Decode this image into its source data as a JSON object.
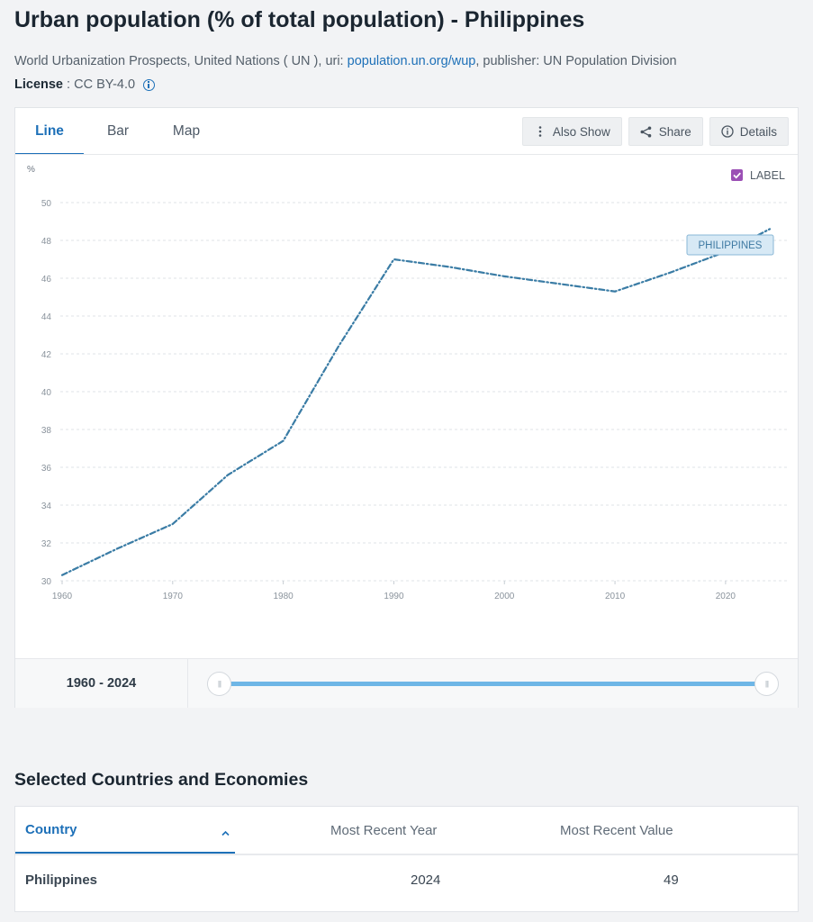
{
  "page": {
    "title": "Urban population (% of total population) - Philippines",
    "source_prefix": "World Urbanization Prospects, United Nations ( UN ), uri: ",
    "source_link": "population.un.org/wup",
    "source_suffix": ", publisher: UN Population Division",
    "license_label": "License",
    "license_sep": " : ",
    "license_value": "CC BY-4.0",
    "info_icon": "info-circle-icon"
  },
  "tabs": [
    {
      "label": "Line",
      "active": true
    },
    {
      "label": "Bar",
      "active": false
    },
    {
      "label": "Map",
      "active": false
    }
  ],
  "toolbar": {
    "also_show": {
      "label": "Also Show",
      "icon": "vertical-dots-icon"
    },
    "share": {
      "label": "Share",
      "icon": "share-icon"
    },
    "details": {
      "label": "Details",
      "icon": "info-circle-icon"
    }
  },
  "legend": {
    "label": "LABEL",
    "checked": true,
    "check_color": "#9b4fb5"
  },
  "chart_data": {
    "type": "line",
    "ylabel": "%",
    "ylim": [
      30,
      50
    ],
    "yticks": [
      30,
      32,
      34,
      36,
      38,
      40,
      42,
      44,
      46,
      48,
      50
    ],
    "xlim": [
      1960,
      2024
    ],
    "xticks": [
      1960,
      1970,
      1980,
      1990,
      2000,
      2010,
      2020
    ],
    "grid": true,
    "line_style": "dash-dot",
    "line_color": "#3a7ca5",
    "series": [
      {
        "name": "PHILIPPINES",
        "x": [
          1960,
          1965,
          1970,
          1975,
          1980,
          1985,
          1990,
          1995,
          2000,
          2005,
          2010,
          2015,
          2020,
          2024
        ],
        "y": [
          30.3,
          31.7,
          33.0,
          35.6,
          37.4,
          42.4,
          47.0,
          46.6,
          46.1,
          45.7,
          45.3,
          46.3,
          47.4,
          48.6
        ]
      }
    ]
  },
  "range": {
    "label": "1960 - 2024",
    "start": 1960,
    "end": 2024
  },
  "table": {
    "section_title": "Selected Countries and Economies",
    "headers": {
      "country": "Country",
      "year": "Most Recent Year",
      "value": "Most Recent Value"
    },
    "rows": [
      {
        "country": "Philippines",
        "year": "2024",
        "value": "49"
      }
    ]
  }
}
